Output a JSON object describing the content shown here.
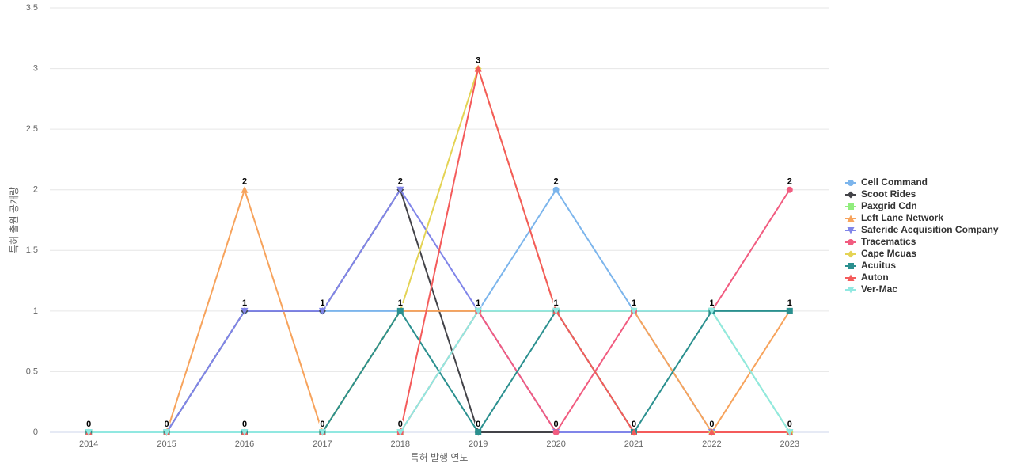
{
  "chart_data": {
    "type": "line",
    "x_label": "특허 발행 연도",
    "y_label": "특허 출원 공개량",
    "categories": [
      "2014",
      "2015",
      "2016",
      "2017",
      "2018",
      "2019",
      "2020",
      "2021",
      "2022",
      "2023"
    ],
    "ylim": [
      0,
      3.5
    ],
    "yticks": [
      0,
      0.5,
      1,
      1.5,
      2,
      2.5,
      3,
      3.5
    ],
    "grid": true,
    "legend": "right",
    "series": [
      {
        "name": "Cell Command",
        "color": "#7cb5ec",
        "marker": "circle",
        "values": [
          0,
          0,
          1,
          1,
          1,
          1,
          2,
          1,
          0,
          0
        ]
      },
      {
        "name": "Scoot Rides",
        "color": "#434348",
        "marker": "diamond",
        "values": [
          0,
          0,
          1,
          1,
          2,
          0,
          0,
          0,
          0,
          0
        ]
      },
      {
        "name": "Paxgrid Cdn",
        "color": "#90ed7d",
        "marker": "square",
        "values": [
          0,
          0,
          0,
          0,
          0,
          1,
          1,
          1,
          1,
          0
        ]
      },
      {
        "name": "Left Lane Network",
        "color": "#f7a35c",
        "marker": "triangle",
        "values": [
          0,
          0,
          2,
          0,
          1,
          1,
          1,
          1,
          0,
          1
        ]
      },
      {
        "name": "Saferide Acquisition Company",
        "color": "#8085e9",
        "marker": "triangle-down",
        "values": [
          0,
          0,
          1,
          1,
          2,
          1,
          0,
          0,
          0,
          0
        ]
      },
      {
        "name": "Tracematics",
        "color": "#f15c80",
        "marker": "circle",
        "values": [
          0,
          0,
          0,
          0,
          0,
          1,
          0,
          1,
          1,
          2
        ]
      },
      {
        "name": "Cape Mcuas",
        "color": "#e4d354",
        "marker": "diamond",
        "values": [
          0,
          0,
          0,
          0,
          1,
          3,
          1,
          0,
          0,
          0
        ]
      },
      {
        "name": "Acuitus",
        "color": "#2b908f",
        "marker": "square",
        "values": [
          0,
          0,
          0,
          0,
          1,
          0,
          1,
          0,
          1,
          1
        ]
      },
      {
        "name": "Auton",
        "color": "#f45b5b",
        "marker": "triangle",
        "values": [
          0,
          0,
          0,
          0,
          0,
          3,
          1,
          0,
          0,
          0
        ]
      },
      {
        "name": "Ver-Mac",
        "color": "#91e8e1",
        "marker": "triangle-down",
        "values": [
          0,
          0,
          0,
          0,
          0,
          1,
          1,
          1,
          1,
          0
        ]
      }
    ]
  }
}
